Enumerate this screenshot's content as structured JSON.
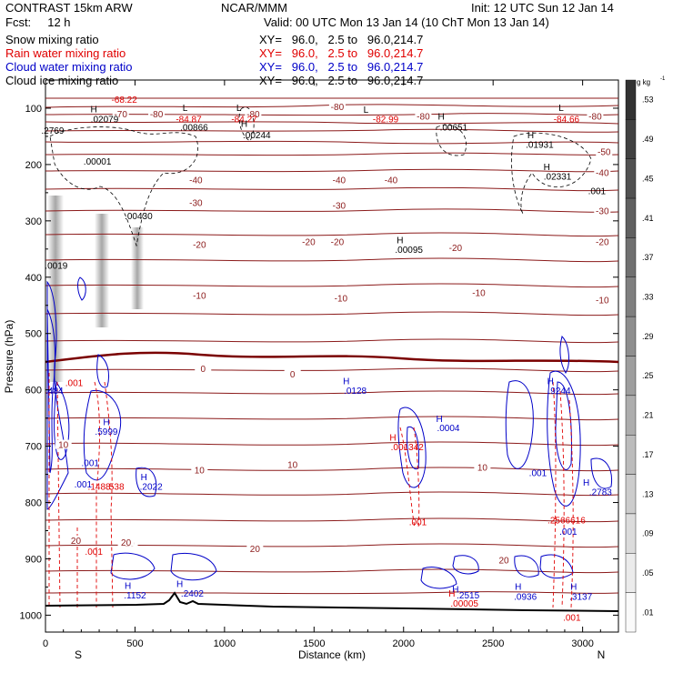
{
  "header": {
    "line1_left": "CONTRAST 15km ARW",
    "line1_mid": "NCAR/MMM",
    "line1_right": "Init: 12 UTC Sun 12 Jan 14",
    "line2_left": "Fcst:     12 h",
    "line2_right": "Valid: 00 UTC Mon 13 Jan 14 (10 ChT Mon 13 Jan 14)",
    "fields": [
      {
        "name": "Snow mixing ratio",
        "xy": "XY=   96.0,   2.5 to   96.0,214.7",
        "color": "#000000"
      },
      {
        "name": "Rain water mixing ratio",
        "xy": "XY=   96.0,   2.5 to   96.0,214.7",
        "color": "#e00000"
      },
      {
        "name": "Cloud water mixing ratio",
        "xy": "XY=   96.0,   2.5 to   96.0,214.7",
        "color": "#0000c8"
      },
      {
        "name": "Cloud ice mixing ratio",
        "xy": "XY=   96.0,   2.5 to   96.0,214.7",
        "color": "#000000"
      }
    ]
  },
  "chart_data": {
    "type": "contour-cross-section",
    "xlabel": "Distance (km)",
    "ylabel": "Pressure (hPa)",
    "xlim": [
      0,
      3200
    ],
    "ylim": [
      1030,
      50
    ],
    "xticks": [
      0,
      500,
      1000,
      1500,
      2000,
      2500,
      3000
    ],
    "yticks": [
      100,
      200,
      300,
      400,
      500,
      600,
      700,
      800,
      900,
      1000
    ],
    "end_labels": {
      "left": "S",
      "right": "N"
    },
    "colorbar": {
      "unit": "g kg",
      "unit_exp": "-1",
      "labels": [
        ".01",
        ".05",
        ".09",
        ".13",
        ".17",
        ".21",
        ".25",
        ".29",
        ".33",
        ".37",
        ".41",
        ".45",
        ".49",
        ".53"
      ]
    },
    "temperature_labels": [
      {
        "text": "-80",
        "x": 620,
        "p": 113
      },
      {
        "text": "-80",
        "x": 1160,
        "p": 113
      },
      {
        "text": "-80",
        "x": 1630,
        "p": 100
      },
      {
        "text": "-80",
        "x": 2110,
        "p": 117
      },
      {
        "text": "-80",
        "x": 3070,
        "p": 117
      },
      {
        "text": "-70",
        "x": 420,
        "p": 113
      },
      {
        "text": "-50",
        "x": 3120,
        "p": 180
      },
      {
        "text": "-40",
        "x": 840,
        "p": 230
      },
      {
        "text": "-40",
        "x": 1640,
        "p": 230
      },
      {
        "text": "-40",
        "x": 1930,
        "p": 230
      },
      {
        "text": "-40",
        "x": 3110,
        "p": 217
      },
      {
        "text": "-30",
        "x": 840,
        "p": 270
      },
      {
        "text": "-30",
        "x": 1640,
        "p": 275
      },
      {
        "text": "-30",
        "x": 3110,
        "p": 285
      },
      {
        "text": "-20",
        "x": 860,
        "p": 345
      },
      {
        "text": "-20",
        "x": 1470,
        "p": 340
      },
      {
        "text": "-20",
        "x": 1630,
        "p": 340
      },
      {
        "text": "-20",
        "x": 2290,
        "p": 350
      },
      {
        "text": "-20",
        "x": 3110,
        "p": 340
      },
      {
        "text": "-10",
        "x": 860,
        "p": 435
      },
      {
        "text": "-10",
        "x": 1650,
        "p": 440
      },
      {
        "text": "-10",
        "x": 2420,
        "p": 430
      },
      {
        "text": "-10",
        "x": 3110,
        "p": 443
      },
      {
        "text": "0",
        "x": 880,
        "p": 565
      },
      {
        "text": "0",
        "x": 1380,
        "p": 575
      },
      {
        "text": "10",
        "x": 860,
        "p": 745
      },
      {
        "text": "10",
        "x": 1380,
        "p": 735
      },
      {
        "text": "10",
        "x": 2440,
        "p": 740
      },
      {
        "text": "20",
        "x": 470,
        "p": 875
      },
      {
        "text": "20",
        "x": 1170,
        "p": 885
      },
      {
        "text": "20",
        "x": 2560,
        "p": 905
      },
      {
        "text": "10",
        "x": 100,
        "p": 700
      },
      {
        "text": "20",
        "x": 170,
        "p": 870
      },
      {
        "text": "20",
        "x": 450,
        "p": 873
      }
    ],
    "value_labels": [
      {
        "text": "-68.22",
        "x": 440,
        "p": 90,
        "color": "#e00000"
      },
      {
        "text": "H",
        "x": 270,
        "p": 107,
        "color": "#000000"
      },
      {
        "text": ".02079",
        "x": 330,
        "p": 125,
        "color": "#000000"
      },
      {
        "text": "L",
        "x": 780,
        "p": 105,
        "color": "#000000"
      },
      {
        "text": "-84.87",
        "x": 800,
        "p": 125,
        "color": "#e00000"
      },
      {
        "text": ".00866",
        "x": 830,
        "p": 140,
        "color": "#000000"
      },
      {
        "text": "L",
        "x": 1080,
        "p": 105,
        "color": "#000000"
      },
      {
        "text": "-84.27",
        "x": 1110,
        "p": 125,
        "color": "#e00000"
      },
      {
        "text": "H",
        "x": 1110,
        "p": 133,
        "color": "#000000"
      },
      {
        "text": ".00244",
        "x": 1180,
        "p": 153,
        "color": "#000000"
      },
      {
        "text": "L",
        "x": 1790,
        "p": 108,
        "color": "#000000"
      },
      {
        "text": "-82.99",
        "x": 1900,
        "p": 125,
        "color": "#e00000"
      },
      {
        "text": "H",
        "x": 2210,
        "p": 120,
        "color": "#000000"
      },
      {
        "text": ".00651",
        "x": 2280,
        "p": 140,
        "color": "#000000"
      },
      {
        "text": "L",
        "x": 2880,
        "p": 105,
        "color": "#000000"
      },
      {
        "text": "-84.66",
        "x": 2910,
        "p": 125,
        "color": "#e00000"
      },
      {
        "text": "H",
        "x": 2710,
        "p": 153,
        "color": "#000000"
      },
      {
        "text": ".01931",
        "x": 2760,
        "p": 170,
        "color": "#000000"
      },
      {
        "text": "H",
        "x": 2800,
        "p": 210,
        "color": "#000000"
      },
      {
        "text": ".02331",
        "x": 2860,
        "p": 227,
        "color": "#000000"
      },
      {
        "text": ".001",
        "x": 3080,
        "p": 253,
        "color": "#000000"
      },
      {
        "text": ".2769",
        "x": 40,
        "p": 145,
        "color": "#000000"
      },
      {
        "text": ".00001",
        "x": 290,
        "p": 200,
        "color": "#000000"
      },
      {
        "text": ".00430",
        "x": 520,
        "p": 297,
        "color": "#000000"
      },
      {
        "text": "H",
        "x": 1980,
        "p": 340,
        "color": "#000000"
      },
      {
        "text": ".00095",
        "x": 2030,
        "p": 357,
        "color": "#000000"
      },
      {
        "text": ".0019",
        "x": 60,
        "p": 385,
        "color": "#000000"
      },
      {
        "text": "H",
        "x": 1680,
        "p": 590,
        "color": "#0000c8"
      },
      {
        "text": ".0128",
        "x": 1730,
        "p": 607,
        "color": "#0000c8"
      },
      {
        "text": "H",
        "x": 2200,
        "p": 657,
        "color": "#0000c8"
      },
      {
        "text": ".0004",
        "x": 2250,
        "p": 673,
        "color": "#0000c8"
      },
      {
        "text": "H",
        "x": 2820,
        "p": 590,
        "color": "#0000c8"
      },
      {
        "text": ".9244",
        "x": 2870,
        "p": 607,
        "color": "#0000c8"
      },
      {
        "text": ".484",
        "x": 50,
        "p": 607,
        "color": "#0000c8"
      },
      {
        "text": ".001",
        "x": 160,
        "p": 593,
        "color": "#e00000"
      },
      {
        "text": "H",
        "x": 340,
        "p": 663,
        "color": "#0000c8"
      },
      {
        "text": ".5999",
        "x": 340,
        "p": 680,
        "color": "#0000c8"
      },
      {
        "text": ".001",
        "x": 210,
        "p": 773,
        "color": "#0000c8"
      },
      {
        "text": ".001",
        "x": 250,
        "p": 735,
        "color": "#0000c8"
      },
      {
        "text": "H",
        "x": 550,
        "p": 760,
        "color": "#0000c8"
      },
      {
        "text": ".2022",
        "x": 590,
        "p": 777,
        "color": "#0000c8"
      },
      {
        "text": ".1488",
        "x": 300,
        "p": 777,
        "color": "#e00000"
      },
      {
        "text": ".538",
        "x": 390,
        "p": 777,
        "color": "#e00000"
      },
      {
        "text": "H",
        "x": 1940,
        "p": 690,
        "color": "#e00000"
      },
      {
        "text": ".001342",
        "x": 2020,
        "p": 707,
        "color": "#e00000"
      },
      {
        "text": ".001",
        "x": 2080,
        "p": 840,
        "color": "#e00000"
      },
      {
        "text": ".001",
        "x": 2750,
        "p": 753,
        "color": "#0000c8"
      },
      {
        "text": "H",
        "x": 3020,
        "p": 770,
        "color": "#0000c8"
      },
      {
        "text": ".2783",
        "x": 3100,
        "p": 787,
        "color": "#0000c8"
      },
      {
        "text": ".2566616",
        "x": 2910,
        "p": 837,
        "color": "#e00000"
      },
      {
        "text": ".001",
        "x": 2920,
        "p": 857,
        "color": "#0000c8"
      },
      {
        "text": ".001",
        "x": 270,
        "p": 893,
        "color": "#e00000"
      },
      {
        "text": "H",
        "x": 460,
        "p": 953,
        "color": "#0000c8"
      },
      {
        "text": ".1152",
        "x": 500,
        "p": 970,
        "color": "#0000c8"
      },
      {
        "text": "H",
        "x": 750,
        "p": 950,
        "color": "#0000c8"
      },
      {
        "text": ".2402",
        "x": 820,
        "p": 967,
        "color": "#0000c8"
      },
      {
        "text": "H",
        "x": 2290,
        "p": 960,
        "color": "#0000c8"
      },
      {
        "text": ".2515",
        "x": 2360,
        "p": 970,
        "color": "#0000c8"
      },
      {
        "text": "H",
        "x": 2270,
        "p": 967,
        "color": "#e00000"
      },
      {
        "text": ".00005",
        "x": 2340,
        "p": 985,
        "color": "#e00000"
      },
      {
        "text": "H",
        "x": 2640,
        "p": 955,
        "color": "#0000c8"
      },
      {
        "text": ".0936",
        "x": 2680,
        "p": 973,
        "color": "#0000c8"
      },
      {
        "text": "H",
        "x": 2950,
        "p": 955,
        "color": "#0000c8"
      },
      {
        "text": ".3137",
        "x": 2990,
        "p": 973,
        "color": "#0000c8"
      },
      {
        "text": ".001",
        "x": 2940,
        "p": 1010,
        "color": "#e00000"
      }
    ]
  }
}
